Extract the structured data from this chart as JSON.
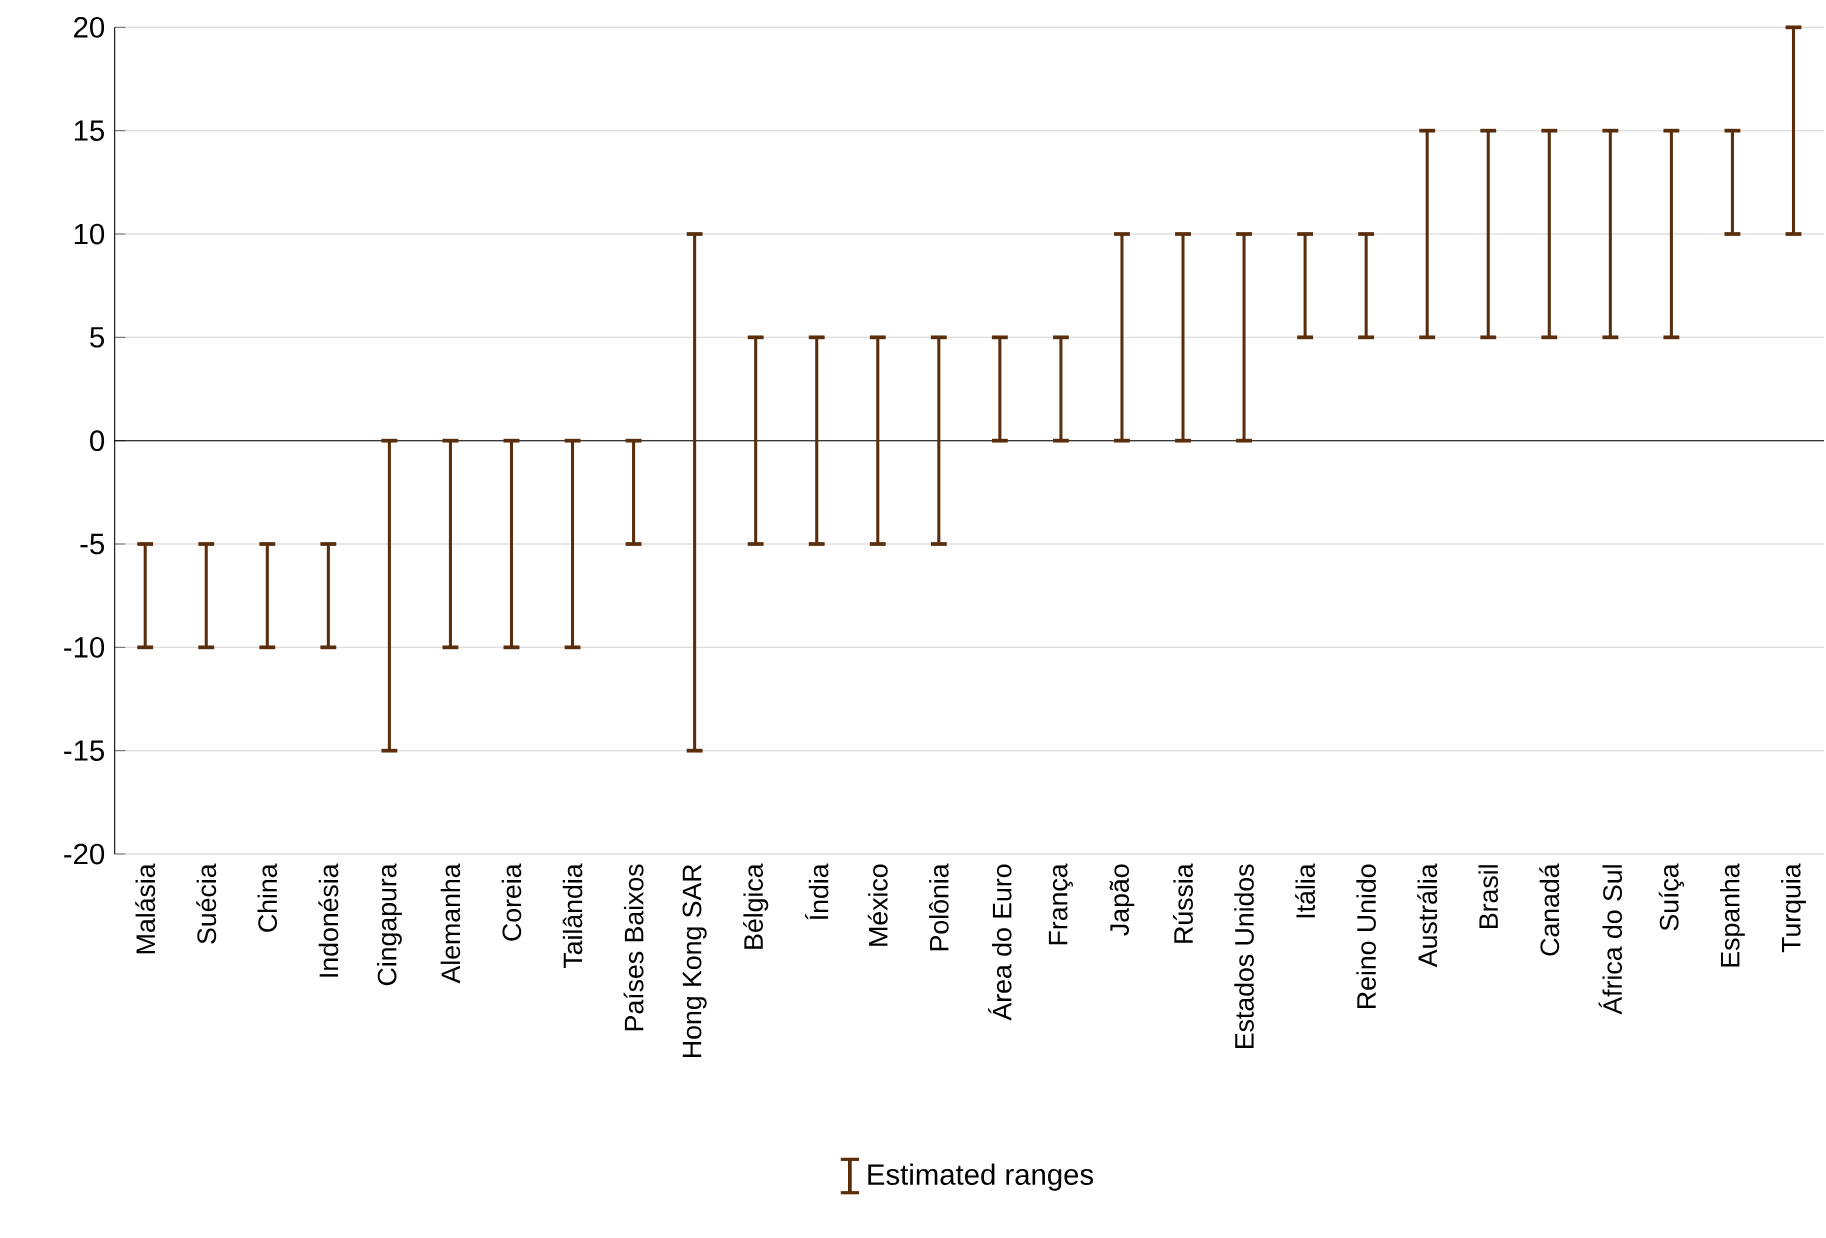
{
  "chart_data": {
    "type": "bar",
    "series": [
      {
        "name": "Estimated ranges",
        "color": "#5a2d0c",
        "base": [
          -10,
          -10,
          -10,
          -10,
          -15,
          -10,
          -10,
          -10,
          -5,
          -15,
          -5,
          -5,
          -5,
          -5,
          0,
          0,
          0,
          0,
          0,
          5,
          5,
          5,
          5,
          5,
          5,
          5,
          10,
          10
        ],
        "values": [
          5,
          5,
          5,
          5,
          15,
          10,
          10,
          10,
          5,
          25,
          10,
          10,
          10,
          10,
          5,
          5,
          10,
          10,
          10,
          5,
          5,
          10,
          10,
          10,
          10,
          10,
          5,
          10
        ]
      }
    ],
    "categories": [
      "Malásia",
      "Suécia",
      "China",
      "Indonésia",
      "Cingapura",
      "Alemanha",
      "Coreia",
      "Tailândia",
      "Países Baixos",
      "Hong Kong SAR",
      "Bélgica",
      "Índia",
      "México",
      "Polônia",
      "Área do Euro",
      "França",
      "Japão",
      "Rússia",
      "Estados Unidos",
      "Itália",
      "Reino Unido",
      "Austrália",
      "Brasil",
      "Canadá",
      "África do Sul",
      "Suíça",
      "Espanha",
      "Turquia"
    ],
    "ylim": [
      -20,
      20
    ],
    "yticks": [
      -20,
      -15,
      -10,
      -5,
      0,
      5,
      10,
      15,
      20
    ],
    "grid": "y",
    "legend": "bottom"
  }
}
